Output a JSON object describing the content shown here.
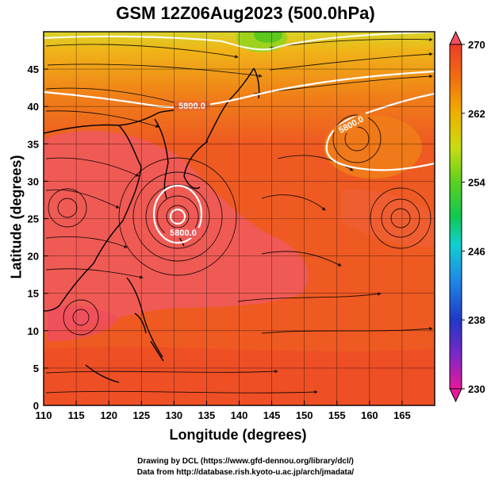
{
  "title": "GSM 12Z06Aug2023 (500.0hPa)",
  "axes": {
    "xlabel": "Longitude (degrees)",
    "ylabel": "Latitude  (degrees)",
    "xlim": [
      110,
      170
    ],
    "ylim": [
      0,
      50
    ],
    "xticks": [
      "110",
      "115",
      "120",
      "125",
      "130",
      "135",
      "140",
      "145",
      "150",
      "155",
      "160",
      "165"
    ],
    "yticks": [
      "0",
      "5",
      "10",
      "15",
      "20",
      "25",
      "30",
      "35",
      "40",
      "45"
    ]
  },
  "colorbar": {
    "labels": [
      "270",
      "262",
      "254",
      "246",
      "238",
      "230"
    ],
    "min": 230,
    "max": 270,
    "colors": [
      "#e8189c",
      "#6a2cc8",
      "#2038c8",
      "#1e8ce6",
      "#10d0d0",
      "#10c850",
      "#5cd020",
      "#c8dc10",
      "#f0b000",
      "#f07010",
      "#ee3c28",
      "#f05060"
    ]
  },
  "contours": [
    {
      "label": "5800.0"
    },
    {
      "label": "5800.0"
    },
    {
      "label": "5800.0"
    }
  ],
  "credits": [
    "Drawing by DCL (https://www.gfd-dennou.org/library/dcl/)",
    "Data from http://database.rish.kyoto-u.ac.jp/arch/jmadata/"
  ]
}
